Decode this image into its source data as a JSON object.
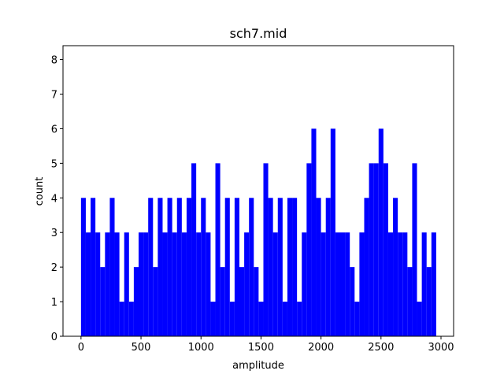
{
  "chart_data": {
    "type": "histogram",
    "title": "sch7.mid",
    "x_label": "amplitude",
    "y_label": "count",
    "color": "#0000ff",
    "bins": [
      0,
      40,
      80,
      120,
      160,
      200,
      240,
      280,
      320,
      360,
      400,
      440,
      480,
      520,
      560,
      600,
      640,
      680,
      720,
      760,
      800,
      840,
      880,
      920,
      960,
      1000,
      1040,
      1080,
      1120,
      1160,
      1200,
      1240,
      1280,
      1320,
      1360,
      1400,
      1440,
      1480,
      1520,
      1560,
      1600,
      1640,
      1680,
      1720,
      1760,
      1800,
      1840,
      1880,
      1920,
      1960,
      2000,
      2040,
      2080,
      2120,
      2160,
      2200,
      2240,
      2280,
      2320,
      2360,
      2400,
      2440,
      2480,
      2520,
      2560,
      2600,
      2640,
      2680,
      2720,
      2760,
      2800,
      2840,
      2880,
      2920,
      2960
    ],
    "counts": [
      4,
      3,
      4,
      3,
      2,
      3,
      4,
      3,
      1,
      3,
      1,
      2,
      3,
      3,
      4,
      2,
      4,
      3,
      4,
      3,
      4,
      3,
      4,
      5,
      3,
      4,
      3,
      1,
      5,
      2,
      4,
      1,
      4,
      2,
      3,
      4,
      2,
      1,
      5,
      4,
      3,
      4,
      1,
      4,
      4,
      1,
      3,
      5,
      6,
      4,
      3,
      4,
      6,
      3,
      3,
      3,
      2,
      1,
      3,
      4,
      5,
      5,
      6,
      5,
      3,
      4,
      3,
      3,
      2,
      5,
      1,
      3,
      2,
      3
    ],
    "xlim": [
      -150,
      3105
    ],
    "ylim": [
      0,
      8.4
    ],
    "xticks": [
      0,
      500,
      1000,
      1500,
      2000,
      2500,
      3000
    ],
    "yticks": [
      0,
      1,
      2,
      3,
      4,
      5,
      6,
      7,
      8
    ]
  }
}
